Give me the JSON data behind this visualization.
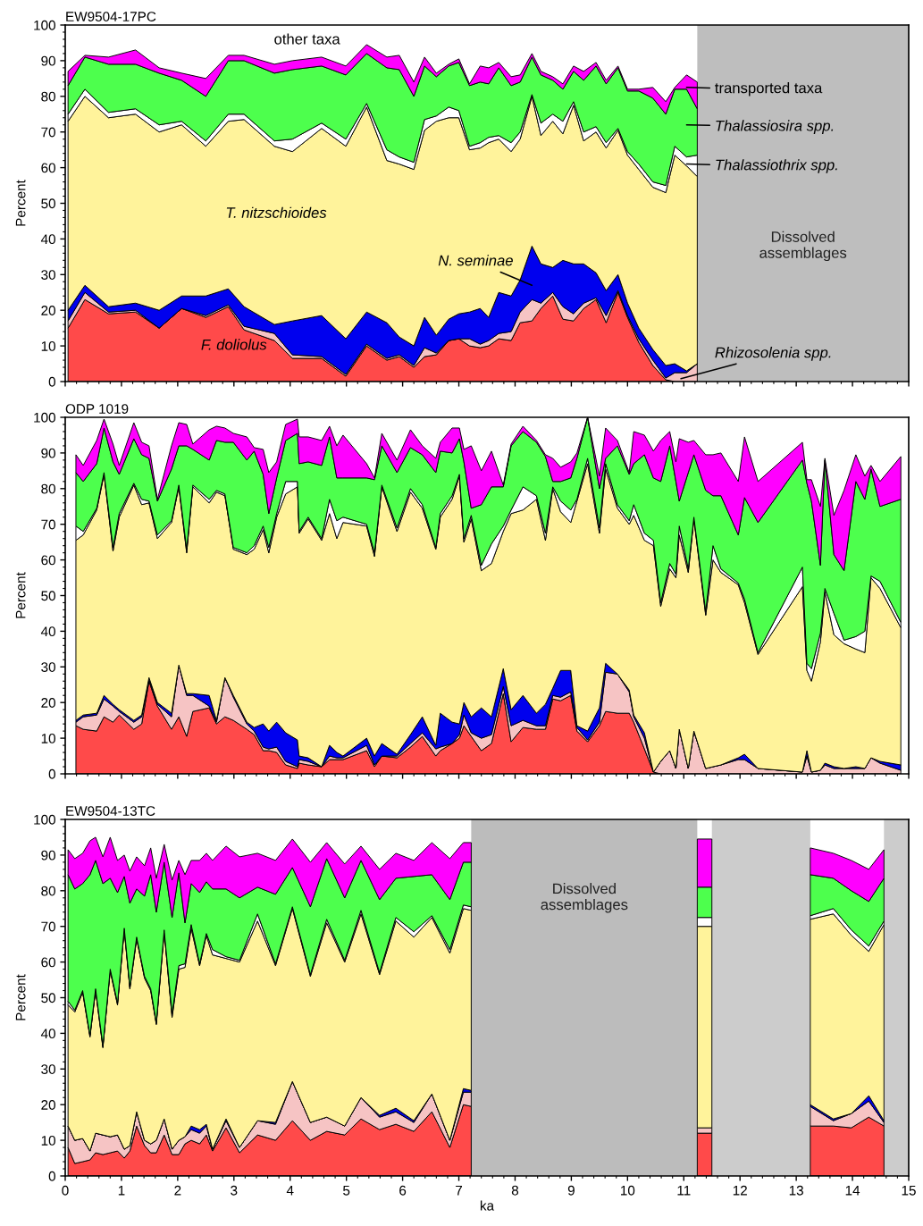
{
  "chart_data": [
    {
      "type": "area",
      "stacked": true,
      "title": "EW9504-17PC",
      "ylabel": "Percent",
      "xlim": [
        0,
        15
      ],
      "ylim": [
        0,
        100
      ],
      "xticks": [
        0,
        1,
        2,
        3,
        4,
        5,
        6,
        7,
        8,
        9,
        10,
        11,
        12,
        13,
        14,
        15
      ],
      "yticks": [
        0,
        10,
        20,
        30,
        40,
        50,
        60,
        70,
        80,
        90,
        100
      ],
      "tick_labels": "y",
      "x": [
        0.05,
        0.35,
        0.77,
        1.25,
        1.67,
        2.07,
        2.5,
        2.9,
        3.18,
        3.72,
        4.04,
        4.56,
        4.99,
        5.36,
        5.72,
        5.94,
        6.2,
        6.39,
        6.6,
        6.82,
        7.0,
        7.19,
        7.38,
        7.53,
        7.71,
        7.93,
        8.09,
        8.3,
        8.46,
        8.67,
        8.85,
        9.04,
        9.22,
        9.44,
        9.62,
        9.83,
        10.0,
        10.2,
        10.45,
        10.68,
        10.84,
        11.05,
        11.24
      ],
      "series": [
        {
          "name": "F. doliolus",
          "color": "#ff4a4a",
          "values": [
            15,
            23,
            19,
            19.5,
            15,
            20.5,
            18,
            21,
            14.5,
            11.5,
            6.5,
            6.5,
            1.5,
            10,
            6,
            7,
            4,
            7,
            7.5,
            11.5,
            12,
            10,
            9.5,
            10,
            12,
            11.5,
            16.5,
            17,
            20.5,
            24,
            17.5,
            17,
            20.5,
            23,
            16.5,
            25,
            18,
            11,
            4.5,
            0.5,
            0,
            0,
            0
          ]
        },
        {
          "name": "Rhizosolenia spp.",
          "color": "#f6c4c4",
          "values": [
            2,
            2,
            0.5,
            0.5,
            0,
            0,
            0.5,
            0.5,
            1,
            2,
            1,
            0.5,
            0.5,
            0.5,
            0.5,
            0.5,
            0.5,
            2.5,
            0.5,
            0,
            0,
            2,
            1,
            1.5,
            1.5,
            2.5,
            3,
            6,
            1.5,
            1,
            3.5,
            2,
            1.5,
            0.5,
            2,
            0.5,
            0.5,
            1,
            1.5,
            0.5,
            2.5,
            2.5,
            5
          ]
        },
        {
          "name": "N. seminae",
          "color": "#0000ee",
          "values": [
            3,
            2,
            1.5,
            2,
            5,
            3.5,
            5.5,
            4.5,
            5.5,
            2.5,
            9.5,
            11.5,
            10,
            9,
            10,
            5,
            5.5,
            8.5,
            5,
            6,
            7,
            7.5,
            10,
            6.5,
            11.5,
            10,
            9,
            15,
            11,
            7,
            13,
            14,
            11,
            7,
            7,
            4.5,
            3.5,
            3,
            3,
            3.5,
            2.5,
            0.5,
            0
          ]
        },
        {
          "name": "T. nitzschioides",
          "color": "#fff39b",
          "values": [
            53,
            53,
            53,
            53,
            50,
            48,
            42,
            47,
            52.5,
            50,
            47.5,
            52.5,
            54,
            57.5,
            45.5,
            48.5,
            49.5,
            52.5,
            60,
            56.5,
            55,
            45.5,
            45,
            49,
            43,
            40.5,
            39.5,
            42,
            36,
            41,
            35.5,
            44.5,
            34.5,
            39.5,
            40,
            40.5,
            41.5,
            44.5,
            45.5,
            48.5,
            58.5,
            57.5,
            52.5
          ]
        },
        {
          "name": "Thalassiothrix spp.",
          "color": "#ffffff",
          "values": [
            2,
            2,
            1.5,
            1.5,
            2,
            1,
            1.5,
            2,
            1.5,
            1.5,
            3.5,
            1.5,
            2,
            1,
            3,
            2,
            2,
            3,
            1.5,
            3,
            2,
            1,
            1.5,
            1.5,
            1,
            2.5,
            2,
            0.5,
            3.5,
            2,
            3.5,
            1,
            2.5,
            1.5,
            1.5,
            0.5,
            1,
            1.5,
            1.5,
            2,
            2.5,
            2.5,
            6
          ]
        },
        {
          "name": "Thalassiosira spp.",
          "color": "#4dff4d",
          "values": [
            8,
            9,
            13.5,
            12.5,
            14.5,
            11.5,
            12.5,
            15,
            15,
            19,
            19.5,
            16,
            18,
            14,
            23,
            24.5,
            18.5,
            15,
            11,
            11.5,
            13.5,
            17,
            17,
            15,
            19,
            16,
            14,
            10.5,
            13.5,
            9.5,
            9,
            8.5,
            14.5,
            17,
            16.5,
            17,
            17,
            20.5,
            23.5,
            20,
            16,
            19,
            13
          ]
        },
        {
          "name": "transported taxa",
          "color": "#ff00ff",
          "values": [
            4,
            0.5,
            2,
            4,
            1.5,
            2,
            5,
            1.5,
            1.5,
            2.5,
            2.5,
            2.5,
            2.5,
            2.5,
            3,
            4,
            4,
            2.5,
            1,
            0.5,
            1,
            0.5,
            4.5,
            4.5,
            1.5,
            2.5,
            2,
            1,
            1,
            1,
            1.5,
            1.5,
            2.5,
            1,
            1,
            0.5,
            0.5,
            0.5,
            3,
            3.5,
            0.5,
            4,
            7.5
          ]
        }
      ],
      "bands": [
        {
          "axis": "x",
          "from": 11.24,
          "to": 15,
          "label": "Dissolved\nassemblages",
          "color": "#bebebe"
        }
      ],
      "legend": "right",
      "annotations": [
        "other taxa"
      ]
    },
    {
      "type": "area",
      "stacked": true,
      "title": "ODP 1019",
      "ylabel": "Percent",
      "xlim": [
        0,
        15
      ],
      "ylim": [
        0,
        100
      ],
      "xticks": [
        0,
        1,
        2,
        3,
        4,
        5,
        6,
        7,
        8,
        9,
        10,
        11,
        12,
        13,
        14,
        15
      ],
      "yticks": [
        0,
        10,
        20,
        30,
        40,
        50,
        60,
        70,
        80,
        90,
        100
      ],
      "tick_labels": "y",
      "x": [
        0.19,
        0.32,
        0.56,
        0.69,
        0.85,
        0.96,
        1.22,
        1.36,
        1.49,
        1.64,
        1.89,
        2.02,
        2.16,
        2.27,
        2.56,
        2.69,
        2.84,
        2.99,
        3.23,
        3.36,
        3.52,
        3.62,
        3.76,
        3.92,
        4.13,
        4.16,
        4.32,
        4.56,
        4.7,
        4.83,
        4.94,
        5.36,
        5.5,
        5.63,
        5.9,
        6.14,
        6.35,
        6.59,
        6.67,
        6.88,
        7.01,
        7.09,
        7.22,
        7.4,
        7.58,
        7.79,
        7.93,
        8.14,
        8.38,
        8.54,
        8.67,
        8.81,
        8.99,
        9.1,
        9.29,
        9.5,
        9.61,
        9.82,
        10.03,
        10.11,
        10.3,
        10.46,
        10.59,
        10.75,
        10.86,
        10.92,
        11.08,
        11.18,
        11.39,
        11.52,
        11.66,
        11.97,
        12.08,
        12.32,
        13.11,
        13.19,
        13.27,
        13.43,
        13.51,
        13.67,
        13.85,
        14.06,
        14.22,
        14.33,
        14.49,
        14.86
      ],
      "series": [
        {
          "color": "#ff4a4a",
          "values": [
            13.5,
            12.5,
            12,
            16,
            14.5,
            16.5,
            12.5,
            14,
            26,
            19,
            12.5,
            16,
            10.5,
            17.5,
            18.5,
            14,
            16,
            15,
            12.5,
            11,
            6.5,
            6.5,
            6,
            2.5,
            1.5,
            3,
            2.5,
            2,
            4,
            4,
            4,
            6.5,
            2,
            5,
            4.5,
            7.5,
            10.5,
            5,
            6.5,
            8.5,
            10,
            13.5,
            10.5,
            6.5,
            8.5,
            22.5,
            9,
            13,
            12.5,
            12.5,
            21,
            20.5,
            22,
            12,
            9,
            13.5,
            17.5,
            17,
            17,
            14.5,
            7,
            0.5,
            0,
            0,
            0,
            0,
            0,
            0,
            0,
            0,
            0,
            0,
            0,
            0,
            0,
            0,
            0,
            0,
            0,
            0,
            0,
            0,
            0,
            0,
            0,
            0
          ]
        },
        {
          "color": "#f6c4c4",
          "values": [
            1,
            3.5,
            4.5,
            5,
            4.5,
            1,
            2,
            2,
            0.5,
            0.5,
            3.5,
            14.5,
            11.5,
            4.5,
            0.5,
            0.5,
            11,
            6.5,
            1.5,
            1,
            1,
            0.5,
            1.5,
            1,
            0.5,
            1,
            1,
            0,
            1,
            0.5,
            0.5,
            1.5,
            0.5,
            0,
            0.5,
            1,
            1,
            2,
            1,
            0,
            1,
            3,
            1,
            3.5,
            2.5,
            2,
            4.5,
            2,
            1,
            1,
            1,
            1,
            1,
            1,
            0.5,
            1,
            11,
            11,
            6,
            1.5,
            3,
            0,
            3.5,
            6.5,
            1.5,
            12.5,
            1.5,
            12,
            1.5,
            2,
            2.5,
            4,
            4,
            1.5,
            0.5,
            5,
            0.5,
            1,
            2.5,
            1.5,
            1.5,
            1.5,
            1.5,
            4.5,
            3,
            1
          ]
        },
        {
          "color": "#0000ee",
          "values": [
            0.5,
            0.5,
            0.5,
            1,
            0.5,
            0.5,
            0.5,
            0.5,
            0.5,
            0.5,
            1,
            0,
            0.5,
            0.5,
            3,
            0.5,
            0,
            0.5,
            0.5,
            1,
            6.5,
            5,
            7,
            8,
            7.5,
            1,
            1,
            0,
            3,
            1.5,
            0.5,
            2,
            2.5,
            3.5,
            0.5,
            2.5,
            4.5,
            1,
            9.5,
            6,
            3,
            3.5,
            4.5,
            8.5,
            5,
            5,
            4.5,
            7,
            3.5,
            6,
            2,
            7.5,
            6,
            0.5,
            2.5,
            4,
            2.5,
            0,
            0.5,
            0.5,
            1.5,
            0,
            0,
            0,
            0,
            0,
            0,
            0,
            0,
            0,
            0,
            0.5,
            1.5,
            0,
            0,
            1.5,
            0,
            0,
            0.5,
            0.5,
            0,
            0.5,
            0,
            0,
            0.5,
            1.5
          ]
        },
        {
          "color": "#fff39b",
          "values": [
            50.5,
            50.5,
            57,
            62,
            43,
            54,
            66,
            59,
            49,
            46,
            53.5,
            50,
            39.5,
            58,
            54,
            64,
            51,
            41,
            47,
            50,
            54.5,
            50,
            57.5,
            67,
            71,
            62.5,
            67,
            63.5,
            65,
            60,
            65.5,
            59.5,
            56,
            72,
            62.5,
            68,
            58.5,
            55,
            55,
            62.5,
            69.5,
            45,
            55.5,
            38.5,
            43,
            38.5,
            55,
            52,
            60,
            46,
            56,
            44.5,
            41.5,
            63,
            75,
            49,
            54.5,
            46.5,
            46.5,
            56,
            54,
            63.5,
            43.5,
            51,
            53.5,
            54.5,
            55,
            59.5,
            43,
            58,
            54,
            48.5,
            42.5,
            32,
            52,
            22.5,
            25.5,
            36,
            48,
            37,
            35,
            33,
            32.5,
            50.5,
            48.5,
            38.5
          ]
        },
        {
          "color": "#ffffff",
          "values": [
            4,
            1,
            0.5,
            0.5,
            1,
            1,
            0.5,
            1.5,
            0.5,
            1,
            0.5,
            0.5,
            1,
            0.5,
            1,
            0.5,
            0.5,
            0.5,
            0.5,
            1,
            1,
            1.5,
            1,
            3.5,
            1.5,
            0.5,
            0.5,
            0.5,
            4,
            5,
            1.5,
            0.5,
            1,
            0.5,
            1,
            1,
            1,
            0.5,
            1,
            1,
            0.5,
            1,
            1,
            1.5,
            5.5,
            1.5,
            1,
            6.5,
            1,
            2,
            0.5,
            3,
            3.5,
            0.5,
            1.5,
            1.5,
            1.5,
            1,
            1,
            3,
            2,
            1.5,
            1,
            1.5,
            1,
            2.5,
            1,
            0.5,
            1,
            4,
            1,
            0.5,
            1,
            0.5,
            5.5,
            2,
            3.5,
            2.5,
            1,
            6,
            1,
            3.5,
            6,
            0.5,
            2,
            1.5
          ]
        },
        {
          "color": "#4dff4d",
          "values": [
            15,
            14,
            12.5,
            12.5,
            24,
            11,
            12.5,
            12.5,
            12,
            9.5,
            14.5,
            11,
            29,
            10,
            11,
            14,
            14.5,
            29.5,
            26,
            26.5,
            14.5,
            9.5,
            10,
            11.5,
            13.5,
            19,
            15.5,
            20.5,
            17.5,
            12,
            11,
            13,
            20.5,
            11,
            15.5,
            11.5,
            14,
            21,
            17.5,
            12,
            10,
            21.5,
            2,
            17,
            16,
            11,
            18,
            15.5,
            15,
            21.5,
            1.5,
            5.5,
            9,
            11.5,
            11.5,
            11,
            1.5,
            16.5,
            13,
            11.5,
            22,
            17.5,
            34,
            33,
            26,
            7,
            27,
            17.5,
            34,
            14,
            20.5,
            13.5,
            28.5,
            36.5,
            30,
            50.5,
            47,
            19,
            36,
            16.5,
            19.5,
            43.5,
            37,
            30,
            21,
            34.5
          ]
        },
        {
          "color": "#ff00ff",
          "values": [
            5,
            4.5,
            6.5,
            2.5,
            5,
            2.5,
            4.5,
            3.5,
            3.5,
            0.5,
            6.5,
            6.5,
            6,
            1.5,
            8.5,
            4,
            4,
            2.5,
            6.5,
            1,
            7,
            11.5,
            4.5,
            4.5,
            4,
            7.5,
            7,
            7,
            3,
            9,
            12,
            4,
            0.5,
            3.5,
            3.5,
            5,
            2.5,
            4,
            2.5,
            7,
            3,
            3.5,
            17.5,
            9.5,
            10,
            0.5,
            0.5,
            1.5,
            0.5,
            0.5,
            6.5,
            4,
            4.5,
            1.5,
            0,
            3.5,
            8.5,
            1.5,
            0.5,
            9,
            5.5,
            7.5,
            11.5,
            4,
            5.5,
            17.5,
            8.5,
            4,
            10,
            11.5,
            12,
            15,
            17,
            11.5,
            5,
            1,
            6,
            16.5,
            0.5,
            11,
            22.5,
            7.5,
            6.5,
            1,
            7,
            12
          ]
        }
      ]
    },
    {
      "type": "area",
      "stacked": true,
      "title": "EW9504-13TC",
      "xlabel": "ka",
      "ylabel": "Percent",
      "xlim": [
        0,
        15
      ],
      "ylim": [
        0,
        100
      ],
      "xticks": [
        0,
        1,
        2,
        3,
        4,
        5,
        6,
        7,
        8,
        9,
        10,
        11,
        12,
        13,
        14,
        15
      ],
      "yticks": [
        0,
        10,
        20,
        30,
        40,
        50,
        60,
        70,
        80,
        90,
        100
      ],
      "x": [
        0.05,
        0.17,
        0.31,
        0.44,
        0.54,
        0.67,
        0.8,
        0.93,
        1.05,
        1.15,
        1.27,
        1.41,
        1.52,
        1.62,
        1.76,
        1.9,
        2.02,
        2.13,
        2.24,
        2.39,
        2.51,
        2.62,
        2.86,
        3.1,
        3.42,
        3.74,
        4.04,
        4.36,
        4.65,
        4.97,
        5.26,
        5.59,
        5.88,
        6.2,
        6.52,
        6.84,
        7.08,
        7.22,
        9.2,
        11.24,
        11.5,
        12.4,
        13.25,
        13.66,
        13.98,
        14.29,
        14.56
      ],
      "series": [
        {
          "color": "#ff4a4a",
          "values": [
            8,
            3.5,
            4,
            4.5,
            6.5,
            6,
            6.5,
            7,
            5,
            7,
            14,
            8.5,
            6.5,
            6.5,
            11.5,
            6,
            6,
            9,
            10,
            9,
            11.5,
            7,
            13.5,
            6.5,
            11.5,
            10,
            15.5,
            10,
            12.5,
            11.5,
            16,
            13,
            14.5,
            12.5,
            18,
            8,
            20,
            19.5,
            null,
            12,
            12,
            null,
            14,
            14,
            13.5,
            16.5,
            14
          ]
        },
        {
          "color": "#f6c4c4",
          "values": [
            6,
            6.5,
            6.5,
            2.5,
            5.5,
            5.5,
            4.5,
            4.5,
            2.5,
            1.5,
            4,
            1.5,
            2.5,
            3.5,
            4.5,
            1.5,
            4,
            2,
            3,
            3,
            2.5,
            0.5,
            2,
            1.5,
            4,
            4.5,
            11,
            5,
            4,
            2.5,
            6,
            3.5,
            3.5,
            2.5,
            5,
            2,
            3.5,
            4,
            null,
            1.5,
            1.5,
            null,
            5.5,
            1.5,
            4,
            4.5,
            1
          ]
        },
        {
          "color": "#0000ee",
          "values": [
            0,
            0,
            0,
            0,
            0,
            0,
            0,
            0,
            0,
            0,
            0,
            0,
            0,
            0,
            0,
            0,
            0,
            0,
            1,
            1,
            0.5,
            0,
            0.5,
            0,
            0,
            0.5,
            0,
            0,
            0,
            0,
            0,
            0.5,
            1,
            0.5,
            0,
            0,
            1,
            0.5,
            null,
            null,
            null,
            null,
            0.5,
            0.5,
            0,
            1.5,
            0.5
          ]
        },
        {
          "color": "#fff39b",
          "values": [
            34,
            36,
            41,
            32,
            40,
            24.5,
            46.5,
            36.5,
            61.5,
            44,
            48.5,
            45.5,
            43,
            32.5,
            52.5,
            37,
            48,
            47.5,
            55.5,
            46,
            53,
            54.5,
            45,
            52,
            56,
            44,
            48.5,
            41,
            54.5,
            46,
            51.5,
            39.5,
            52.5,
            51.5,
            49.5,
            52.5,
            50.5,
            50.5,
            null,
            56.5,
            56.5,
            null,
            52,
            57.5,
            50,
            40.5,
            55
          ]
        },
        {
          "color": "#ffffff",
          "values": [
            1,
            0.5,
            0.5,
            0.5,
            0.5,
            0.5,
            0.5,
            0.5,
            0.5,
            0.5,
            0.5,
            0.5,
            0.5,
            0.5,
            0.5,
            1,
            1,
            1,
            1,
            0.5,
            0.5,
            1.5,
            0.5,
            0.5,
            2,
            0.5,
            0.5,
            0.5,
            1,
            0.5,
            1,
            0.5,
            1,
            1.5,
            0.5,
            1,
            1,
            1,
            null,
            2.5,
            2.5,
            null,
            1,
            1.5,
            1.5,
            1.5,
            1
          ]
        },
        {
          "color": "#4dff4d",
          "values": [
            35.5,
            34,
            30,
            45,
            36,
            45.5,
            25.5,
            31,
            14.5,
            23.5,
            13.5,
            22.5,
            32,
            31,
            19,
            27,
            26,
            11.5,
            11.5,
            20,
            14.5,
            17,
            19,
            17.5,
            7.5,
            19.5,
            11,
            19,
            17,
            17.5,
            14,
            20.5,
            11,
            15.5,
            11.5,
            14,
            12,
            12.5,
            null,
            8.5,
            8.5,
            null,
            11.5,
            8.5,
            11,
            12.5,
            12
          ]
        },
        {
          "color": "#ff00ff",
          "values": [
            7,
            8.5,
            8.5,
            9.5,
            6.5,
            7.5,
            11.5,
            9,
            6,
            9,
            9,
            8.5,
            7.5,
            9.5,
            5,
            10.5,
            3.5,
            13.5,
            6.5,
            9,
            8,
            8,
            12,
            11.5,
            9.5,
            9.5,
            8,
            12.5,
            4.5,
            9.5,
            4,
            8.5,
            7,
            4.5,
            9,
            11.5,
            5.5,
            5.5,
            null,
            13.5,
            13.5,
            null,
            7.5,
            7,
            8.5,
            9,
            8
          ]
        }
      ],
      "bands": [
        {
          "axis": "x",
          "from": 7.22,
          "to": 11.24,
          "label": "Dissolved\nassemblages",
          "color": "#bcbcbc"
        },
        {
          "axis": "x",
          "from": 11.5,
          "to": 13.25,
          "color": "#cccccc"
        },
        {
          "axis": "x",
          "from": 14.56,
          "to": 15,
          "color": "#cccccc"
        }
      ]
    }
  ]
}
